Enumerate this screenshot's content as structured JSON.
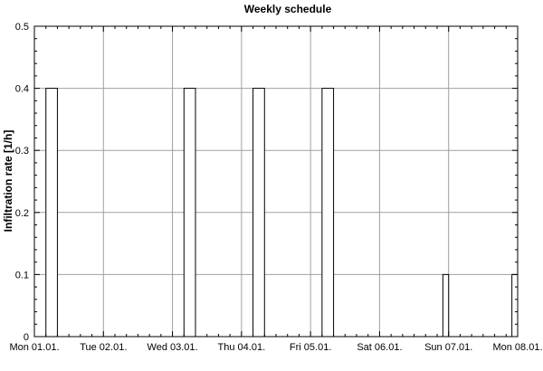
{
  "chart_data": {
    "type": "bar",
    "title": "Weekly schedule",
    "xlabel": "",
    "ylabel": "Infiltration rate [1/h]",
    "x_tick_labels": [
      "Mon 01.01.",
      "Tue 02.01.",
      "Wed 03.01.",
      "Thu 04.01.",
      "Fri 05.01.",
      "Sat 06.01.",
      "Sun 07.01.",
      "Mon 08.01."
    ],
    "y_tick_labels": [
      "0",
      "0.1",
      "0.2",
      "0.3",
      "0.4",
      "0.5"
    ],
    "xlim": [
      "Mon 01.01. 00:00",
      "Mon 08.01. 00:00"
    ],
    "ylim": [
      0,
      0.5
    ],
    "grid": true,
    "series": [
      {
        "values": [
          {
            "start": "Mon 01.01. 04:00",
            "end": "Mon 01.01. 08:00",
            "value": 0.4
          },
          {
            "start": "Wed 03.01. 04:00",
            "end": "Wed 03.01. 08:00",
            "value": 0.4
          },
          {
            "start": "Thu 04.01. 04:00",
            "end": "Thu 04.01. 08:00",
            "value": 0.4
          },
          {
            "start": "Fri 05.01. 04:00",
            "end": "Fri 05.01. 08:00",
            "value": 0.4
          },
          {
            "start": "Sat 06.01. 22:00",
            "end": "Sun 07.01. 00:00",
            "value": 0.1
          },
          {
            "start": "Sun 07.01. 22:00",
            "end": "Mon 08.01. 00:00",
            "value": 0.1
          }
        ]
      }
    ],
    "colors": {
      "bar_fill": "#ffffff",
      "bar_stroke": "#000000",
      "grid": "#a0a0a0",
      "axis": "#000000"
    }
  }
}
